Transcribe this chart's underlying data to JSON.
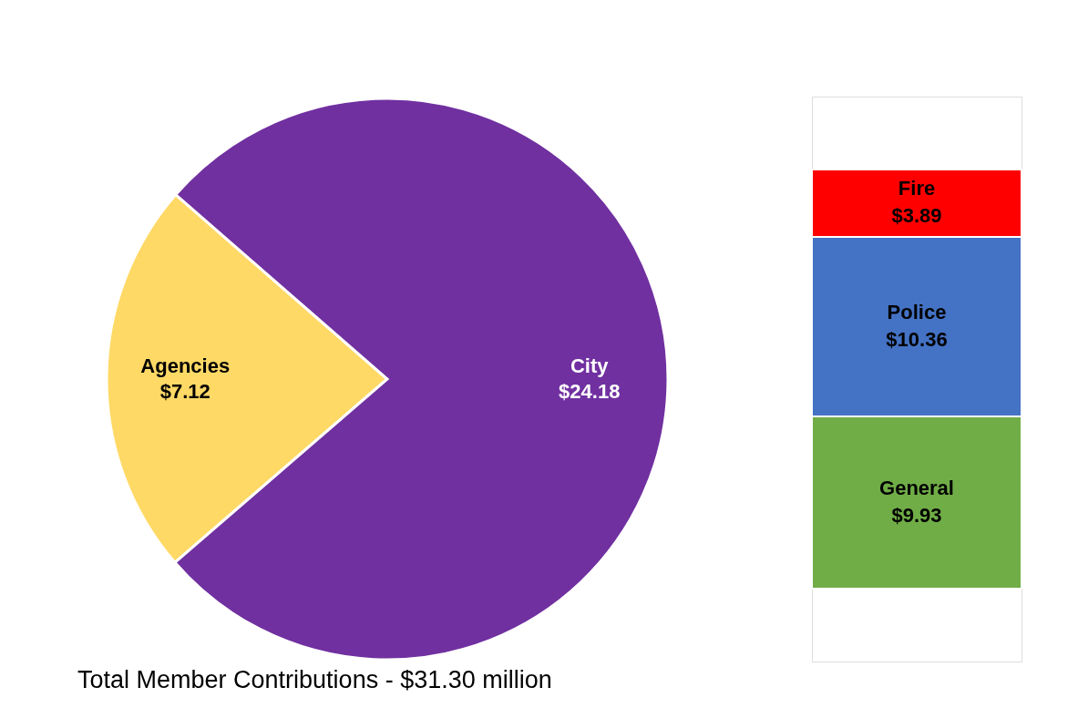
{
  "chart_data": [
    {
      "type": "pie",
      "categories": [
        "Agencies",
        "City"
      ],
      "values": [
        7.12,
        24.18
      ],
      "colors": [
        "#ffd966",
        "#7030a0"
      ],
      "value_labels": [
        "$7.12",
        "$24.18"
      ],
      "legend": false,
      "annotations": [
        "Total Member Contributions - $31.30 million"
      ]
    },
    {
      "type": "bar",
      "stacked": true,
      "categories": [
        null
      ],
      "series": [
        {
          "name": "General",
          "color": "#70ad47",
          "values": [
            9.93
          ],
          "value_labels": [
            "$9.93"
          ]
        },
        {
          "name": "Police",
          "color": "#4472c4",
          "values": [
            10.36
          ],
          "value_labels": [
            "$10.36"
          ]
        },
        {
          "name": "Fire",
          "color": "#ff0000",
          "values": [
            3.89
          ],
          "value_labels": [
            "$3.89"
          ]
        }
      ]
    }
  ]
}
